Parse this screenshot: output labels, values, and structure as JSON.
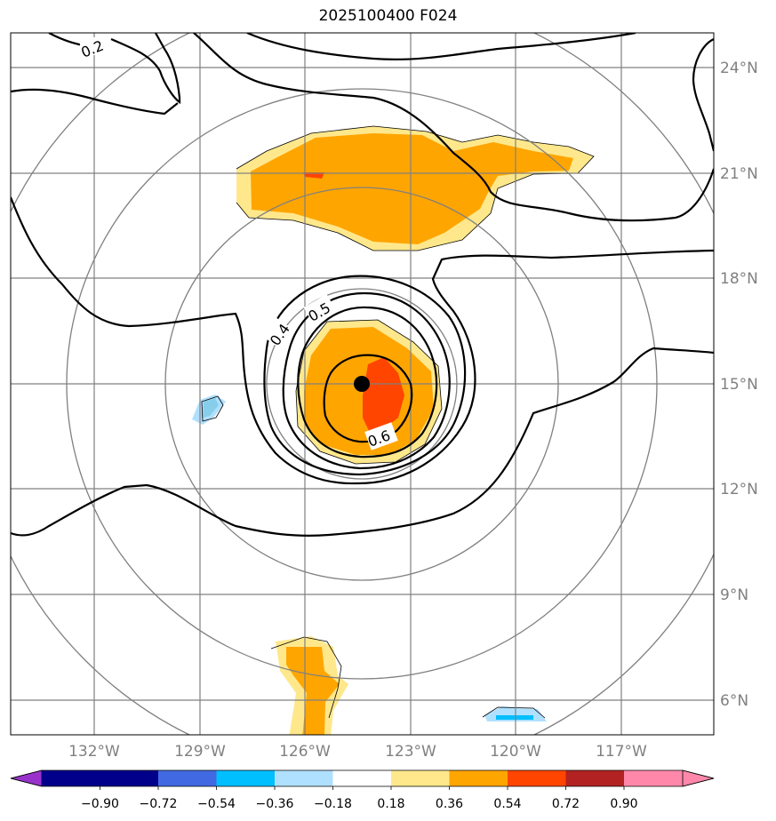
{
  "title": "2025100400 F024",
  "map": {
    "lon_range": [
      -134.4,
      -114.3
    ],
    "lat_range": [
      5.0,
      25.0
    ],
    "lon_ticks": [
      {
        "value": -132,
        "label": "132°W"
      },
      {
        "value": -129,
        "label": "129°W"
      },
      {
        "value": -126,
        "label": "126°W"
      },
      {
        "value": -123,
        "label": "123°W"
      },
      {
        "value": -120,
        "label": "120°W"
      },
      {
        "value": -117,
        "label": "117°W"
      }
    ],
    "lat_ticks": [
      {
        "value": 24,
        "label": "24°N"
      },
      {
        "value": 21,
        "label": "21°N"
      },
      {
        "value": 18,
        "label": "18°N"
      },
      {
        "value": 15,
        "label": "15°N"
      },
      {
        "value": 12,
        "label": "12°N"
      },
      {
        "value": 9,
        "label": "9°N"
      },
      {
        "value": 6,
        "label": "6°N"
      }
    ],
    "storm_center": {
      "lon": -124.4,
      "lat": 15.0
    },
    "contour_labels": [
      {
        "text": "0.2",
        "lon": -131.9,
        "lat": 24.5
      },
      {
        "text": "0.4",
        "lon": -126.8,
        "lat": 16.4
      },
      {
        "text": "0.5",
        "lon": -125.9,
        "lat": 17.2
      },
      {
        "text": "0.6",
        "lon": -123.8,
        "lat": 13.8
      }
    ],
    "colors": {
      "grid": "#808080",
      "contour": "#000000",
      "fill_018_036": "#ffe88c",
      "fill_036_054": "#ffa500",
      "fill_054_072": "#ff4500",
      "fill_neg_036_018": "#b0e0ff",
      "fill_neg_054_036": "#00bfff"
    }
  },
  "colorbar": {
    "colors": [
      "#9932cc",
      "#00008b",
      "#4169e1",
      "#00bfff",
      "#b0e0ff",
      "#ffffff",
      "#ffe88c",
      "#ffa500",
      "#ff4500",
      "#b22222",
      "#ff88aa"
    ],
    "tick_labels": [
      "−0.90",
      "−0.72",
      "−0.54",
      "−0.36",
      "−0.18",
      "0.18",
      "0.36",
      "0.54",
      "0.72",
      "0.90"
    ]
  }
}
